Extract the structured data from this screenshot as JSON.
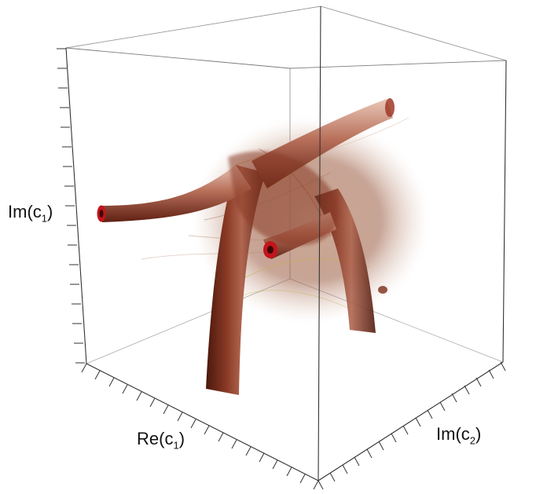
{
  "axes": {
    "vertical": {
      "base": "Im(c",
      "sub": "1",
      "close": ")"
    },
    "front_left": {
      "base": "Re(c",
      "sub": "1",
      "close": ")"
    },
    "front_right": {
      "base": "Im(c",
      "sub": "2",
      "close": ")"
    }
  },
  "colors": {
    "tube_dark": "#5e1f12",
    "tube_mid": "#8a3a26",
    "tube_light": "#c98b78",
    "tube_highlight": "#e9c7b8",
    "tube_end_ring": "#c4141c",
    "strand_yellow": "#c9b04a",
    "strand_pink": "#d8a79a",
    "box_edge": "#444444"
  }
}
